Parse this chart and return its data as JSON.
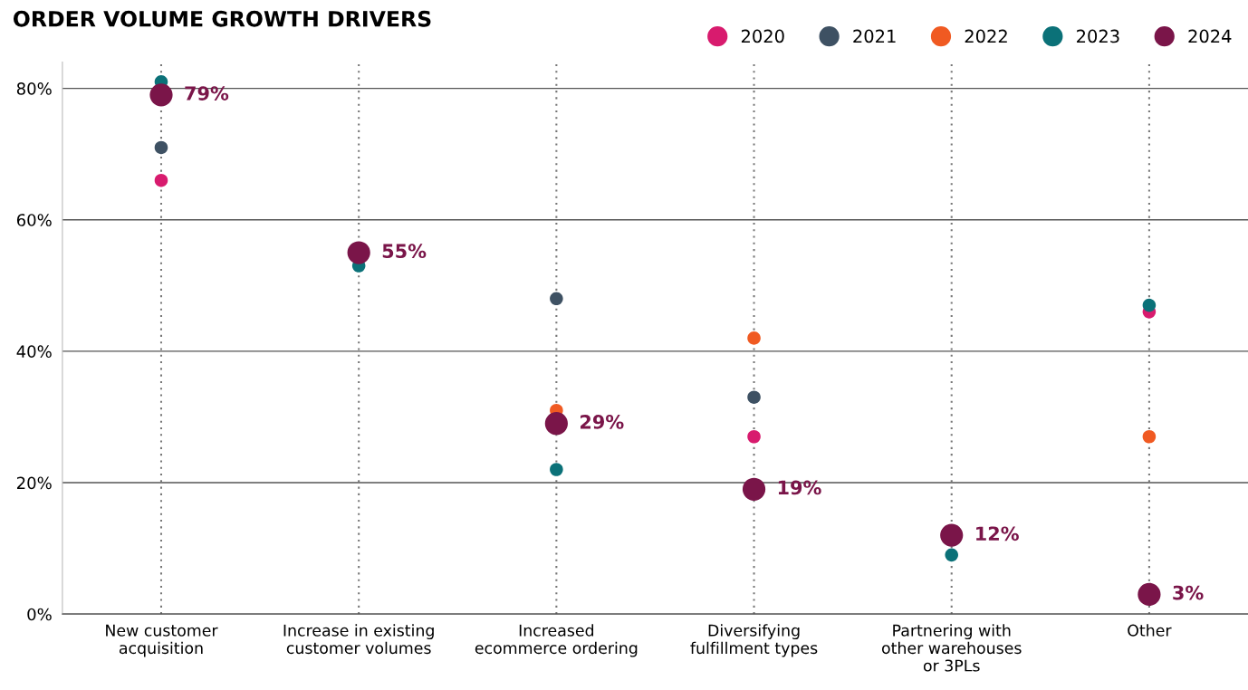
{
  "chart_data": {
    "type": "scatter",
    "title": "ORDER VOLUME GROWTH DRIVERS",
    "categories": [
      "New customer\nacquisition",
      "Increase in existing\ncustomer volumes",
      "Increased\necommerce ordering",
      "Diversifying\nfulfillment types",
      "Partnering with\nother warehouses\nor 3PLs",
      "Other"
    ],
    "series": [
      {
        "name": "2020",
        "color": "#d81b6e",
        "values": [
          66,
          null,
          null,
          27,
          null,
          46
        ]
      },
      {
        "name": "2021",
        "color": "#3e5163",
        "values": [
          71,
          null,
          48,
          33,
          null,
          null
        ]
      },
      {
        "name": "2022",
        "color": "#f05a22",
        "values": [
          null,
          null,
          31,
          42,
          null,
          27
        ]
      },
      {
        "name": "2023",
        "color": "#0b7178",
        "values": [
          81,
          53,
          22,
          null,
          9,
          47
        ]
      },
      {
        "name": "2024",
        "color": "#7a1549",
        "values": [
          79,
          55,
          29,
          19,
          12,
          3
        ],
        "value_labels": [
          "79%",
          "55%",
          "29%",
          "19%",
          "12%",
          "3%"
        ]
      }
    ],
    "ylim": [
      0,
      84
    ],
    "yticks": [
      {
        "value": 0,
        "label": "0%"
      },
      {
        "value": 20,
        "label": "20%"
      },
      {
        "value": 40,
        "label": "40%"
      },
      {
        "value": 60,
        "label": "60%"
      },
      {
        "value": 80,
        "label": "80%"
      }
    ],
    "grid": true,
    "legend": "top right",
    "marker": "circle"
  }
}
